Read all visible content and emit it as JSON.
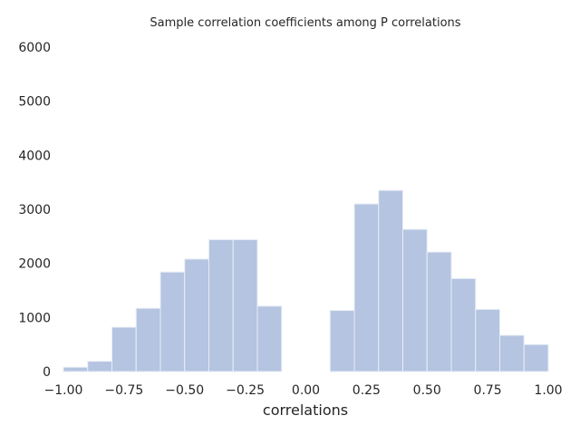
{
  "chart_data": {
    "type": "bar",
    "title": "Sample correlation coefficients among P correlations",
    "xlabel": "correlations",
    "ylabel": "",
    "xlim": [
      -1.0,
      1.0
    ],
    "ylim": [
      0,
      6000
    ],
    "grid": false,
    "bar_color": "#b5c4e0",
    "bar_edge_color": "#e8edf6",
    "x_ticks": [
      -1.0,
      -0.75,
      -0.5,
      -0.25,
      0.0,
      0.25,
      0.5,
      0.75,
      1.0
    ],
    "x_tick_labels": [
      "−1.00",
      "−0.75",
      "−0.50",
      "−0.25",
      "0.00",
      "0.25",
      "0.50",
      "0.75",
      "1.00"
    ],
    "y_ticks": [
      0,
      1000,
      2000,
      3000,
      4000,
      5000,
      6000
    ],
    "y_tick_labels": [
      "0",
      "1000",
      "2000",
      "3000",
      "4000",
      "5000",
      "6000"
    ],
    "bins": [
      {
        "x0": -1.0,
        "x1": -0.9,
        "value": 80
      },
      {
        "x0": -0.9,
        "x1": -0.8,
        "value": 190
      },
      {
        "x0": -0.8,
        "x1": -0.7,
        "value": 820
      },
      {
        "x0": -0.7,
        "x1": -0.6,
        "value": 1170
      },
      {
        "x0": -0.6,
        "x1": -0.5,
        "value": 1840
      },
      {
        "x0": -0.5,
        "x1": -0.4,
        "value": 2080
      },
      {
        "x0": -0.4,
        "x1": -0.3,
        "value": 2440
      },
      {
        "x0": -0.3,
        "x1": -0.2,
        "value": 2440
      },
      {
        "x0": -0.2,
        "x1": -0.1,
        "value": 1210
      },
      {
        "x0": 0.1,
        "x1": 0.2,
        "value": 1130
      },
      {
        "x0": 0.2,
        "x1": 0.3,
        "value": 3100
      },
      {
        "x0": 0.3,
        "x1": 0.4,
        "value": 3350
      },
      {
        "x0": 0.4,
        "x1": 0.5,
        "value": 2630
      },
      {
        "x0": 0.5,
        "x1": 0.6,
        "value": 2210
      },
      {
        "x0": 0.6,
        "x1": 0.7,
        "value": 1720
      },
      {
        "x0": 0.7,
        "x1": 0.8,
        "value": 1150
      },
      {
        "x0": 0.8,
        "x1": 0.9,
        "value": 670
      },
      {
        "x0": 0.9,
        "x1": 1.0,
        "value": 500
      }
    ]
  }
}
